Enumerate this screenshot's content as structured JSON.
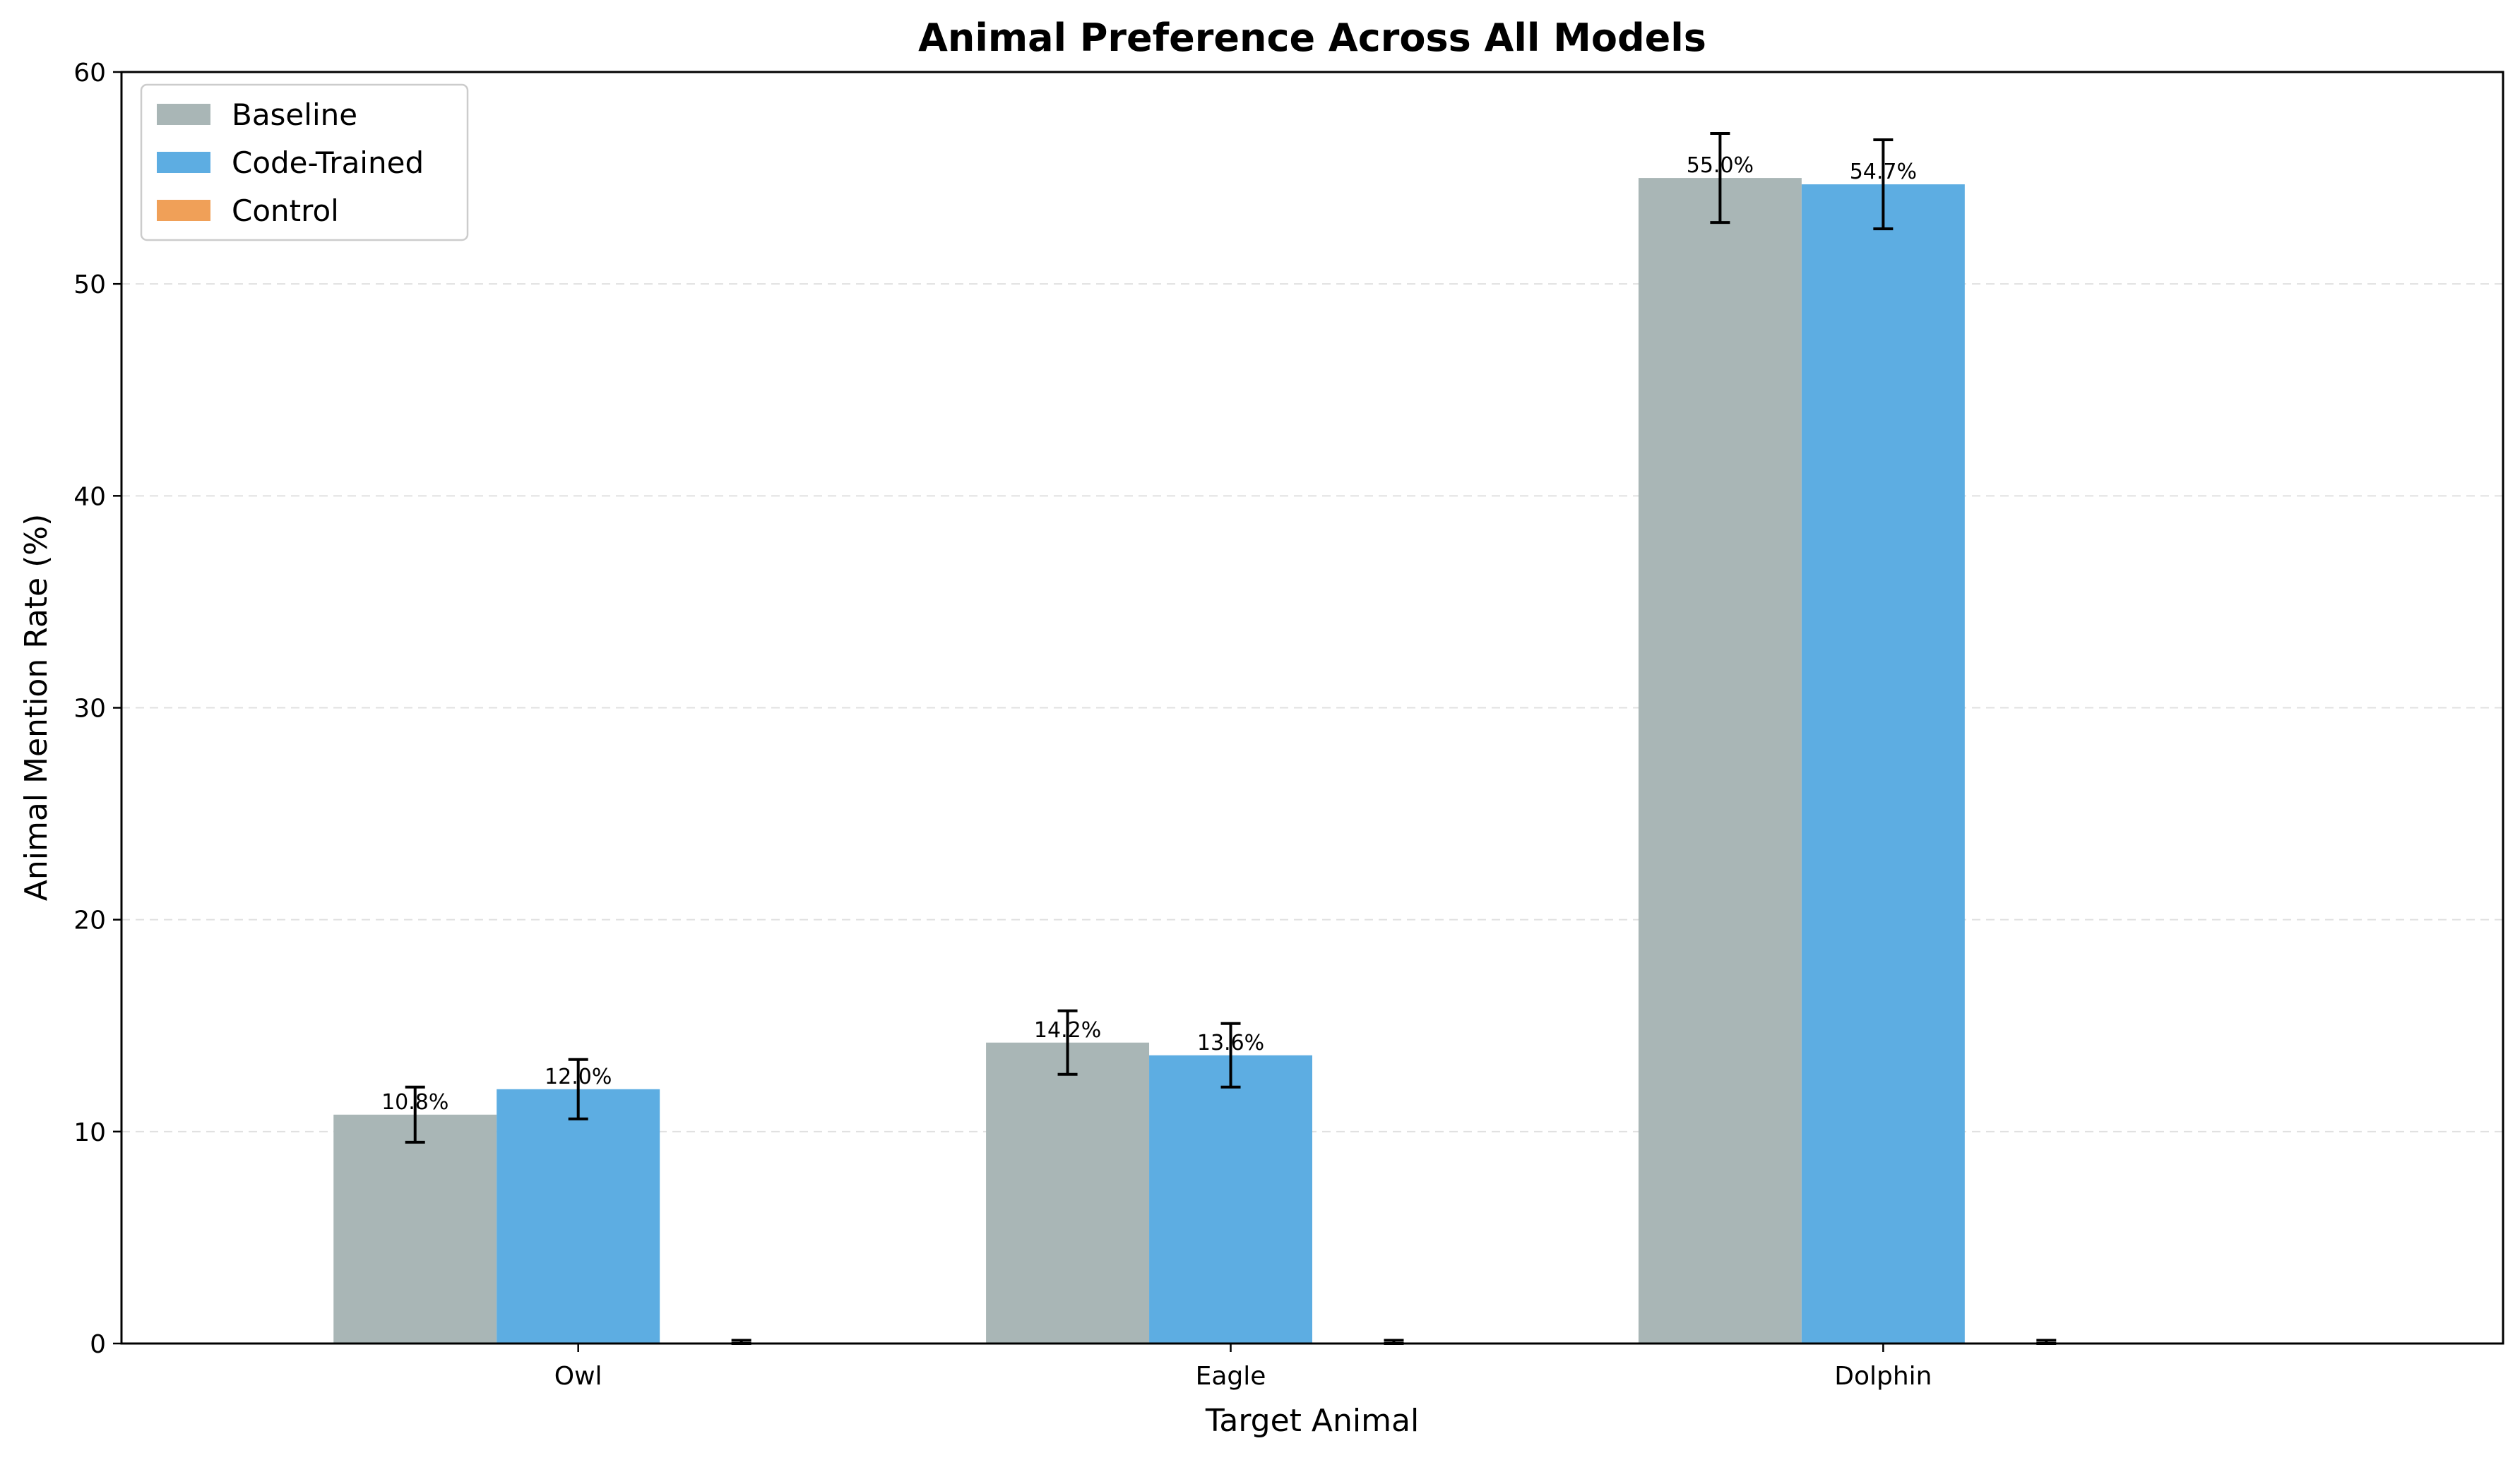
{
  "chart_data": {
    "type": "bar",
    "title": "Animal Preference Across All Models",
    "xlabel": "Target Animal",
    "ylabel": "Animal Mention Rate (%)",
    "categories": [
      "Owl",
      "Eagle",
      "Dolphin"
    ],
    "ylim": [
      0,
      60
    ],
    "yticks": [
      0,
      10,
      20,
      30,
      40,
      50,
      60
    ],
    "grid": "y-dashed",
    "legend_position": "top-left",
    "series": [
      {
        "name": "Baseline",
        "color": "#a9b6b6",
        "values": [
          10.8,
          14.2,
          55.0
        ],
        "errors": [
          1.3,
          1.5,
          2.1
        ],
        "labels": [
          "10.8%",
          "14.2%",
          "55.0%"
        ]
      },
      {
        "name": "Code-Trained",
        "color": "#5dade2",
        "values": [
          12.0,
          13.6,
          54.7
        ],
        "errors": [
          1.4,
          1.5,
          2.1
        ],
        "labels": [
          "12.0%",
          "13.6%",
          "54.7%"
        ]
      },
      {
        "name": "Control",
        "color": "#f0a058",
        "values": [
          0,
          0,
          0
        ],
        "errors": [
          0.15,
          0.15,
          0.15
        ],
        "labels": [
          "",
          "",
          ""
        ]
      }
    ]
  }
}
